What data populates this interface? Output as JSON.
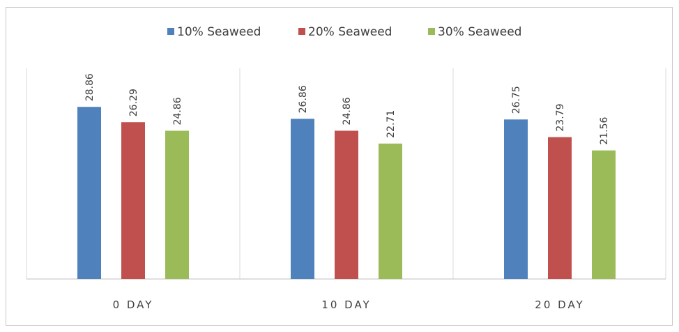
{
  "chart_data": {
    "type": "bar",
    "categories": [
      "0 DAY",
      "10 DAY",
      "20 DAY"
    ],
    "series": [
      {
        "name": "10% Seaweed",
        "values": [
          28.86,
          26.86,
          26.75
        ],
        "color": "#4f81bd"
      },
      {
        "name": "20% Seaweed",
        "values": [
          26.29,
          24.86,
          23.79
        ],
        "color": "#c0504d"
      },
      {
        "name": "30% Seaweed",
        "values": [
          24.86,
          22.71,
          21.56
        ],
        "color": "#9bbb59"
      }
    ],
    "value_labels": [
      [
        "28.86",
        "26.29",
        "24.86"
      ],
      [
        "26.86",
        "24.86",
        "22.71"
      ],
      [
        "26.75",
        "23.79",
        "21.56"
      ]
    ],
    "title": "",
    "xlabel": "",
    "ylabel": "",
    "ylim": [
      0,
      40
    ],
    "grid": "vertical separators",
    "legend_position": "top-center"
  }
}
